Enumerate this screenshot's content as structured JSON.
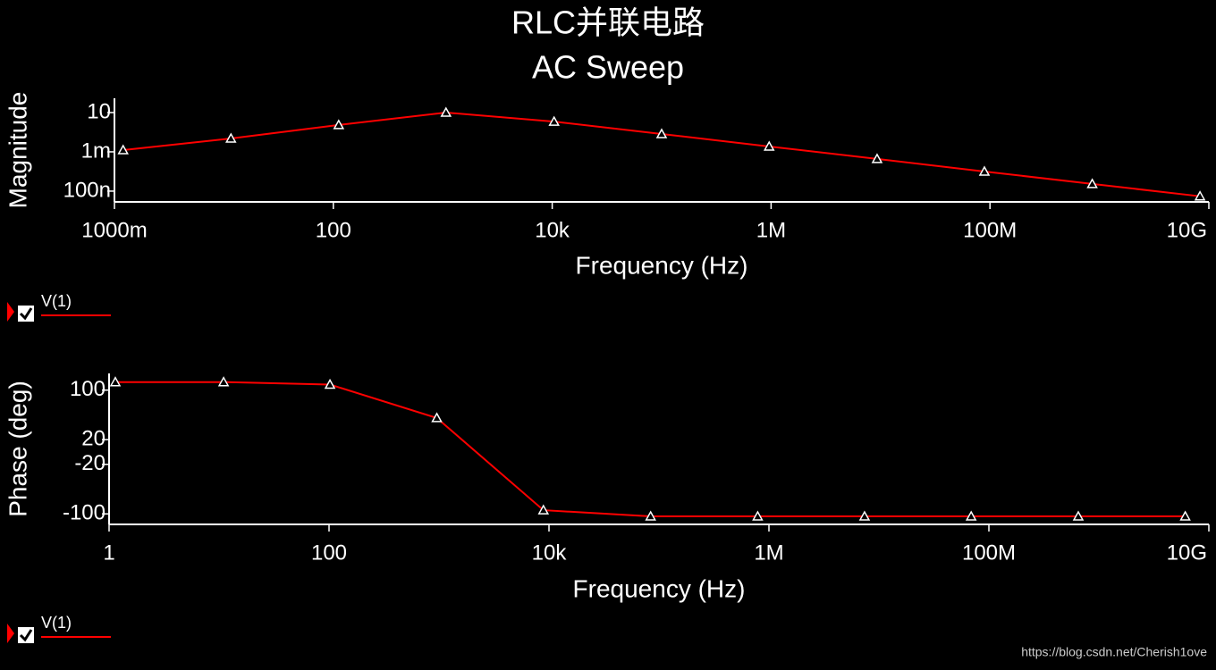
{
  "title": "RLC并联电路",
  "subtitle": "AC Sweep",
  "watermark": "https://blog.csdn.net/Cherish1ove",
  "chart_data": [
    {
      "type": "line",
      "x_label": "Frequency (Hz)",
      "y_label": "Magnitude",
      "log_x": true,
      "log_y": true,
      "legend": "bottom-left",
      "xlim": [
        1,
        10000000000
      ],
      "ylim": [
        8e-09,
        285
      ],
      "xticks": [
        {
          "value": 1,
          "label": "1000m"
        },
        100,
        {
          "value": 10000,
          "label": "10k"
        },
        {
          "value": 1000000,
          "label": "1M"
        },
        {
          "value": 100000000,
          "label": "100M"
        },
        {
          "value": 10000000000,
          "label": "10G"
        }
      ],
      "yticks": [
        10,
        {
          "value": 0.001,
          "label": "1m"
        },
        {
          "value": 1e-07,
          "label": "100n"
        }
      ],
      "x": [
        1.2,
        11.6,
        112,
        1070,
        10400,
        100000,
        960000,
        9300000,
        89000000,
        860000000,
        8300000000
      ],
      "series": [
        {
          "name": "V(1)",
          "color": "#ff0000",
          "values": [
            0.0015,
            0.023,
            0.54,
            10,
            1.2,
            0.066,
            0.0035,
            0.00019,
            1e-05,
            5.4e-07,
            3e-08
          ]
        }
      ]
    },
    {
      "type": "line",
      "x_label": "Frequency (Hz)",
      "y_label": "Phase (deg)",
      "log_x": true,
      "log_y": false,
      "legend": "bottom-left",
      "xlim": [
        1,
        10000000000
      ],
      "ylim": [
        -117,
        127
      ],
      "xticks": [
        1,
        100,
        {
          "value": 10000,
          "label": "10k"
        },
        {
          "value": 1000000,
          "label": "1M"
        },
        {
          "value": 100000000,
          "label": "100M"
        },
        {
          "value": 10000000000,
          "label": "10G"
        }
      ],
      "yticks": [
        100,
        20,
        -20,
        -100
      ],
      "x": [
        1.14,
        11,
        102,
        955,
        8900,
        84000,
        790000,
        7400000,
        69000000,
        650000000,
        6100000000
      ],
      "series": [
        {
          "name": "V(1)",
          "color": "#ff0000",
          "values": [
            113,
            113,
            109,
            55,
            -94,
            -104,
            -104,
            -104,
            -104,
            -104,
            -104
          ]
        }
      ]
    }
  ]
}
